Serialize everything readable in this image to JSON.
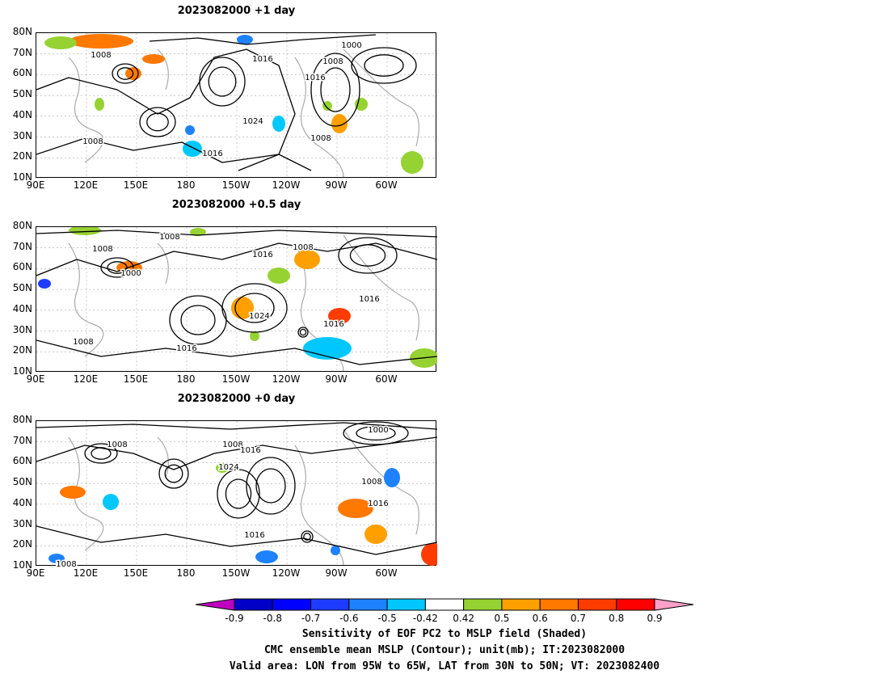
{
  "chart_data": [
    {
      "type": "contour-map",
      "title": "2023082000  +1 day",
      "lat_ticks": [
        "80N",
        "70N",
        "60N",
        "50N",
        "40N",
        "30N",
        "20N",
        "10N"
      ],
      "lon_ticks": [
        "90E",
        "120E",
        "150E",
        "180",
        "150W",
        "120W",
        "90W",
        "60W"
      ],
      "contour_labels": [
        "1008",
        "1016",
        "1000",
        "1008",
        "1016",
        "1024",
        "1008",
        "1008",
        "1016"
      ],
      "xlim": [
        "90E",
        "50W"
      ],
      "ylim": [
        "10N",
        "80N"
      ]
    },
    {
      "type": "contour-map",
      "title": "2023082000  +0.5 day",
      "lat_ticks": [
        "80N",
        "70N",
        "60N",
        "50N",
        "40N",
        "30N",
        "20N",
        "10N"
      ],
      "lon_ticks": [
        "90E",
        "120E",
        "150E",
        "180",
        "150W",
        "120W",
        "90W",
        "60W"
      ],
      "contour_labels": [
        "1008",
        "1008",
        "1000",
        "1008",
        "1016",
        "1024",
        "1016",
        "1016",
        "1008",
        "1016"
      ],
      "xlim": [
        "90E",
        "50W"
      ],
      "ylim": [
        "10N",
        "80N"
      ]
    },
    {
      "type": "contour-map",
      "title": "2023082000  +0 day",
      "lat_ticks": [
        "80N",
        "70N",
        "60N",
        "50N",
        "40N",
        "30N",
        "20N",
        "10N"
      ],
      "lon_ticks": [
        "90E",
        "120E",
        "150E",
        "180",
        "150W",
        "120W",
        "90W",
        "60W"
      ],
      "contour_labels": [
        "1008",
        "1008",
        "1016",
        "1024",
        "1000",
        "1008",
        "1016",
        "1016",
        "1008"
      ],
      "xlim": [
        "90E",
        "50W"
      ],
      "ylim": [
        "10N",
        "80N"
      ]
    }
  ],
  "colorbar": {
    "ticks": [
      "-0.9",
      "-0.8",
      "-0.7",
      "-0.6",
      "-0.5",
      "-0.42",
      "0.42",
      "0.5",
      "0.6",
      "0.7",
      "0.8",
      "0.9"
    ],
    "colors": [
      "#c000c0",
      "#0000c8",
      "#0000ff",
      "#1e3cff",
      "#1e82ff",
      "#00c8ff",
      "#ffffff",
      "#96d232",
      "#ffa000",
      "#ff7800",
      "#ff3c00",
      "#ff0000",
      "#ffa0c8"
    ]
  },
  "footer": {
    "line1": "Sensitivity of EOF PC2 to MSLP field (Shaded)",
    "line2": "CMC ensemble mean MSLP (Contour); unit(mb); IT:2023082000",
    "line3": "Valid area: LON from 95W to 65W, LAT from 30N to 50N; VT: 2023082400"
  }
}
